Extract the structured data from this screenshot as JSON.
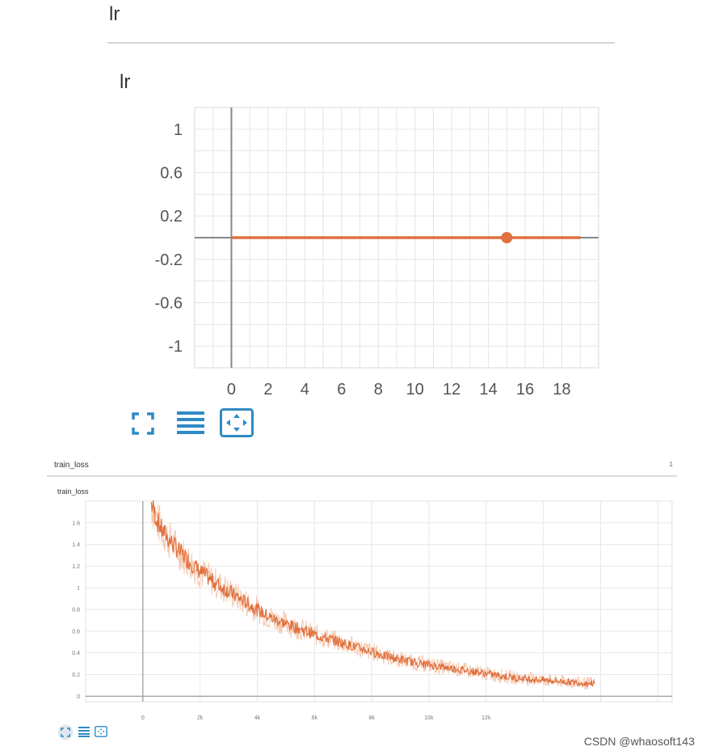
{
  "top_card": {
    "header_title": "lr",
    "chart_title": "lr"
  },
  "bottom_card": {
    "header_title": "train_loss",
    "header_count": "1",
    "chart_title": "train_loss"
  },
  "toolbar_icons": [
    "expand-icon",
    "list-icon",
    "fit-domain-icon"
  ],
  "watermark": "CSDN @whaosoft143",
  "colors": {
    "series": "#e0703e",
    "grid": "#e4e4e4",
    "axis": "#888888",
    "icon": "#2f8ac4"
  },
  "chart_data": [
    {
      "type": "line",
      "title": "lr",
      "xlabel": "",
      "ylabel": "",
      "xlim": [
        -2,
        20
      ],
      "ylim": [
        -1.2,
        1.2
      ],
      "x_ticks": [
        "0",
        "2",
        "4",
        "6",
        "8",
        "10",
        "12",
        "14",
        "16",
        "18"
      ],
      "y_ticks": [
        "1",
        "0.6",
        "0.2",
        "-0.2",
        "-0.6",
        "-1"
      ],
      "grid": true,
      "series": [
        {
          "x": [
            0,
            19
          ],
          "y": [
            0,
            0
          ],
          "highlight": {
            "x": 15,
            "y": 0
          }
        }
      ]
    },
    {
      "type": "line",
      "title": "train_loss",
      "xlabel": "",
      "ylabel": "",
      "xlim": [
        0,
        18500
      ],
      "ylim": [
        -0.05,
        1.8
      ],
      "x_ticks": [
        "0",
        "2k",
        "4k",
        "6k",
        "8k",
        "10k",
        "12k"
      ],
      "y_ticks": [
        "1.6",
        "1.4",
        "1.2",
        "1",
        "0.8",
        "0.6",
        "0.4",
        "0.2",
        "0"
      ],
      "grid": true,
      "series": [
        {
          "x": [
            300,
            500,
            700,
            1000,
            1300,
            1600,
            2000,
            2500,
            3000,
            3500,
            4000,
            4500,
            5000,
            5500,
            6000,
            6500,
            7000,
            7500,
            8000,
            8500,
            9000,
            9500,
            10000,
            10500,
            11000,
            11500,
            12000,
            12500,
            13000,
            13500,
            14000,
            14500,
            15000,
            15500,
            15800
          ],
          "y": [
            1.78,
            1.62,
            1.52,
            1.42,
            1.33,
            1.25,
            1.15,
            1.05,
            0.97,
            0.88,
            0.8,
            0.72,
            0.67,
            0.62,
            0.57,
            0.53,
            0.49,
            0.45,
            0.41,
            0.37,
            0.34,
            0.31,
            0.29,
            0.27,
            0.25,
            0.23,
            0.21,
            0.19,
            0.17,
            0.16,
            0.15,
            0.14,
            0.13,
            0.12,
            0.12
          ]
        }
      ]
    }
  ]
}
